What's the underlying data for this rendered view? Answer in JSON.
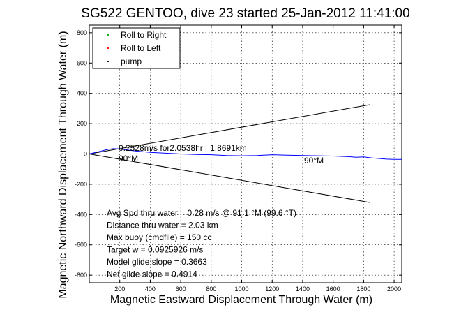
{
  "chart_data": {
    "type": "line",
    "title": "SG522 GENTOO, dive 23 started 25-Jan-2012 11:41:00",
    "xlabel": "Magnetic Eastward Displacement Through Water (m)",
    "ylabel": "Magnetic Northward Displacement Through Water (m)",
    "xlim": [
      0,
      2050
    ],
    "ylim": [
      -850,
      850
    ],
    "xticks": [
      200,
      400,
      600,
      800,
      1000,
      1200,
      1400,
      1600,
      1800,
      2000
    ],
    "yticks": [
      -800,
      -600,
      -400,
      -200,
      0,
      200,
      400,
      600,
      800
    ],
    "grid": true,
    "legend": {
      "placement": "top-left",
      "entries": [
        {
          "label": "Roll to Right",
          "color": "#00aa00"
        },
        {
          "label": "Roll to Left",
          "color": "#ff0000"
        },
        {
          "label": "pump",
          "color": "#000000"
        }
      ]
    },
    "series": [
      {
        "color": "#0000ff",
        "x": [
          0,
          40,
          80,
          120,
          160,
          200,
          260,
          320,
          400,
          500,
          600,
          700,
          800,
          900,
          1000,
          1100,
          1200,
          1300,
          1400,
          1500,
          1600,
          1700,
          1750,
          1800,
          1850,
          1900,
          1950,
          2000,
          2050
        ],
        "y": [
          0,
          10,
          20,
          30,
          35,
          33,
          25,
          18,
          10,
          5,
          0,
          -3,
          -5,
          -10,
          -12,
          -10,
          -5,
          -8,
          -10,
          -12,
          -14,
          -18,
          -22,
          -20,
          -26,
          -30,
          -34,
          -36,
          -36
        ]
      }
    ],
    "cone_lines": [
      {
        "x": [
          0,
          1840
        ],
        "y": [
          0,
          325
        ]
      },
      {
        "x": [
          0,
          1840
        ],
        "y": [
          0,
          -320
        ]
      }
    ],
    "reference_line": {
      "x": [
        0,
        1840
      ],
      "y": [
        0,
        0
      ]
    },
    "annotations": {
      "track_summary": "0.2528m/s for2.0538hr =1.8691km",
      "heading_left": "90°M",
      "heading_right": "90°M",
      "stats": [
        "Avg Spd thru water = 0.28 m/s @ 91.1 °M (99.6 °T)",
        "Distance thru water = 2.03 km",
        "Max buoy (cmdfile) = 150 cc",
        "Target w = 0.0925926 m/s",
        "Model glide slope = 0.3663",
        "Net glide slope = 0.4914"
      ]
    }
  }
}
